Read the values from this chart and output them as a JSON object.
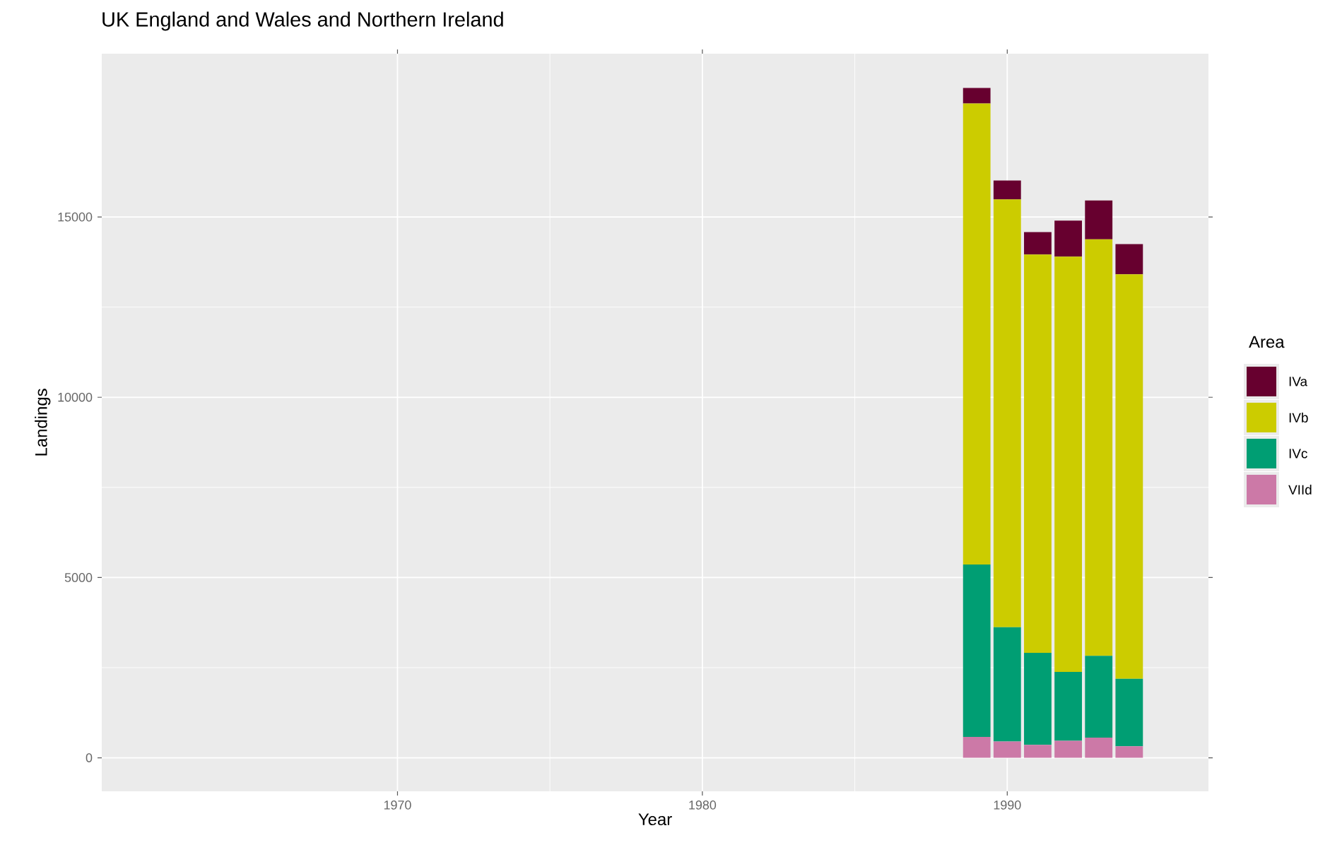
{
  "chart_data": {
    "type": "bar",
    "stacked": true,
    "title": "UK England and Wales and Northern Ireland",
    "xlabel": "Year",
    "ylabel": "Landings",
    "legend_title": "Area",
    "x": [
      1989,
      1990,
      1991,
      1992,
      1993,
      1994
    ],
    "series": [
      {
        "name": "VIId",
        "color": "#cc79a7",
        "values": [
          580,
          450,
          360,
          470,
          560,
          320
        ]
      },
      {
        "name": "IVc",
        "color": "#009e73",
        "values": [
          4780,
          3170,
          2550,
          1910,
          2270,
          1870
        ]
      },
      {
        "name": "IVb",
        "color": "#cccc00",
        "values": [
          12790,
          11870,
          11050,
          11520,
          11550,
          11220
        ]
      },
      {
        "name": "IVa",
        "color": "#67002f",
        "values": [
          430,
          520,
          620,
          1000,
          1080,
          840
        ]
      }
    ],
    "xlim": [
      1960.3,
      1996.6
    ],
    "ylim": [
      -930,
      19530
    ],
    "xticks": [
      1970,
      1980,
      1990
    ],
    "yticks": [
      0,
      5000,
      10000,
      15000
    ],
    "grid": true,
    "legend": "right"
  }
}
